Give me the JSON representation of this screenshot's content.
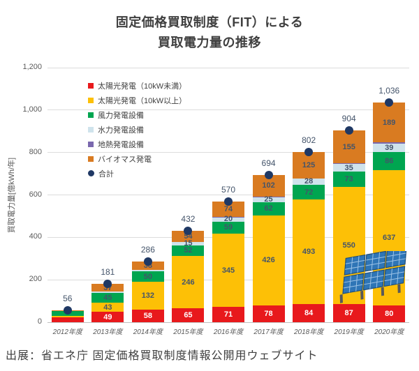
{
  "title": {
    "line1": "固定価格買取制度（FIT）による",
    "line2": "買取電力量の推移"
  },
  "y_axis_label": "買取電力量[億kWh/年]",
  "caption": "出展：省エネ庁 固定価格買取制度情報公開用ウェブサイト",
  "legend": {
    "items": [
      {
        "label": "太陽光発電（10kW未満）",
        "color": "#e8191c",
        "marker": "square"
      },
      {
        "label": "太陽光発電（10kW以上）",
        "color": "#fdc006",
        "marker": "square"
      },
      {
        "label": "風力発電設備",
        "color": "#00a550",
        "marker": "square"
      },
      {
        "label": "水力発電設備",
        "color": "#cfe3ec",
        "marker": "square"
      },
      {
        "label": "地熱発電設備",
        "color": "#7a68ae",
        "marker": "square"
      },
      {
        "label": "バイオマス発電",
        "color": "#d97b21",
        "marker": "square"
      },
      {
        "label": "合計",
        "color": "#1f3864",
        "marker": "circle"
      }
    ]
  },
  "chart_data": {
    "type": "bar",
    "stacked": true,
    "title": "固定価格買取制度（FIT）による買取電力量の推移",
    "ylabel": "買取電力量[億kWh/年]",
    "ylim": [
      0,
      1200
    ],
    "grid": true,
    "legend_position": "upper-left",
    "yticks": [
      {
        "v": 0,
        "label": "0"
      },
      {
        "v": 200,
        "label": "200"
      },
      {
        "v": 400,
        "label": "400"
      },
      {
        "v": 600,
        "label": "600"
      },
      {
        "v": 800,
        "label": "800"
      },
      {
        "v": 1000,
        "label": "1,000"
      },
      {
        "v": 1200,
        "label": "1,200"
      }
    ],
    "categories": [
      "2012年度",
      "2013年度",
      "2014年度",
      "2015年度",
      "2016年度",
      "2017年度",
      "2018年度",
      "2019年度",
      "2020年度"
    ],
    "totals": [
      56,
      181,
      286,
      432,
      570,
      694,
      802,
      904,
      1036
    ],
    "total_labels": [
      "56",
      "181",
      "286",
      "432",
      "570",
      "694",
      "802",
      "904",
      "1,036"
    ],
    "total_marker_color": "#1f3864",
    "series": [
      {
        "name": "太陽光発電（10kW未満）",
        "color": "#e8191c",
        "label_color": "#ffffff",
        "values": [
          24,
          49,
          58,
          65,
          71,
          78,
          84,
          87,
          80
        ],
        "labels": [
          "",
          "49",
          "58",
          "65",
          "71",
          "78",
          "84",
          "87",
          "80"
        ]
      },
      {
        "name": "太陽光発電（10kW以上）",
        "color": "#fdc006",
        "label_color": "#44546a",
        "values": [
          4,
          43,
          132,
          246,
          345,
          426,
          493,
          550,
          637
        ],
        "labels": [
          "",
          "43",
          "132",
          "246",
          "345",
          "426",
          "493",
          "550",
          "637"
        ]
      },
      {
        "name": "風力発電設備",
        "color": "#00a550",
        "label_color": "#44546a",
        "values": [
          25,
          45,
          50,
          52,
          59,
          62,
          72,
          73,
          86
        ],
        "labels": [
          "",
          "45",
          "50",
          "52",
          "59",
          "62",
          "72",
          "73",
          "86"
        ]
      },
      {
        "name": "水力発電設備",
        "color": "#cfe3ec",
        "label_color": "#44546a",
        "values": [
          2,
          7,
          8,
          15,
          20,
          25,
          28,
          35,
          39
        ],
        "labels": [
          "",
          "",
          "",
          "15",
          "20",
          "25",
          "28",
          "35",
          "39"
        ]
      },
      {
        "name": "地熱発電設備",
        "color": "#7a68ae",
        "label_color": "#44546a",
        "values": [
          0,
          0,
          0,
          0,
          1,
          1,
          0,
          4,
          5
        ],
        "labels": [
          "",
          "",
          "",
          "",
          "",
          "",
          "",
          "",
          ""
        ]
      },
      {
        "name": "バイオマス発電",
        "color": "#d97b21",
        "label_color": "#44546a",
        "values": [
          1,
          37,
          38,
          54,
          74,
          102,
          125,
          155,
          189
        ],
        "labels": [
          "",
          "37",
          "38",
          "54",
          "74",
          "102",
          "125",
          "155",
          "189"
        ]
      }
    ]
  }
}
